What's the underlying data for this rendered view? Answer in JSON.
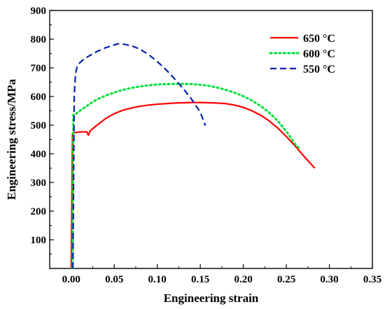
{
  "chart_data": {
    "type": "line",
    "title": "",
    "xlabel": "Engineering strain",
    "ylabel": "Engineering stress/MPa",
    "xlim": [
      -0.025,
      0.35
    ],
    "ylim": [
      0,
      900
    ],
    "xticks": [
      0.0,
      0.05,
      0.1,
      0.15,
      0.2,
      0.25,
      0.3,
      0.35
    ],
    "xtick_labels": [
      "0.00",
      "0.05",
      "0.10",
      "0.15",
      "0.20",
      "0.25",
      "0.30",
      "0.35"
    ],
    "yticks": [
      100,
      200,
      300,
      400,
      500,
      600,
      700,
      800,
      900
    ],
    "ytick_labels": [
      "100",
      "200",
      "300",
      "400",
      "500",
      "600",
      "700",
      "800",
      "900"
    ],
    "grid": false,
    "legend_position": "top-right",
    "series": [
      {
        "name": "650 °C",
        "color": "#ff0000",
        "line_style": "solid",
        "points": [
          [
            0.0,
            0
          ],
          [
            0.0015,
            470
          ],
          [
            0.004,
            474
          ],
          [
            0.01,
            476
          ],
          [
            0.018,
            477
          ],
          [
            0.02,
            465
          ],
          [
            0.022,
            480
          ],
          [
            0.03,
            500
          ],
          [
            0.04,
            523
          ],
          [
            0.05,
            540
          ],
          [
            0.06,
            552
          ],
          [
            0.07,
            560
          ],
          [
            0.08,
            566
          ],
          [
            0.09,
            570
          ],
          [
            0.1,
            573
          ],
          [
            0.11,
            575
          ],
          [
            0.12,
            577
          ],
          [
            0.13,
            578
          ],
          [
            0.14,
            579
          ],
          [
            0.15,
            579
          ],
          [
            0.16,
            578
          ],
          [
            0.17,
            577
          ],
          [
            0.18,
            575
          ],
          [
            0.19,
            570
          ],
          [
            0.2,
            562
          ],
          [
            0.21,
            550
          ],
          [
            0.22,
            535
          ],
          [
            0.23,
            515
          ],
          [
            0.24,
            490
          ],
          [
            0.25,
            460
          ],
          [
            0.26,
            428
          ],
          [
            0.27,
            393
          ],
          [
            0.283,
            350
          ]
        ]
      },
      {
        "name": "600 °C",
        "color": "#00e03a",
        "line_style": "dotted",
        "points": [
          [
            0.0015,
            0
          ],
          [
            0.0025,
            536
          ],
          [
            0.005,
            538
          ],
          [
            0.01,
            550
          ],
          [
            0.02,
            571
          ],
          [
            0.03,
            590
          ],
          [
            0.04,
            603
          ],
          [
            0.05,
            614
          ],
          [
            0.06,
            623
          ],
          [
            0.07,
            630
          ],
          [
            0.08,
            635
          ],
          [
            0.09,
            639
          ],
          [
            0.1,
            642
          ],
          [
            0.11,
            643
          ],
          [
            0.12,
            644
          ],
          [
            0.13,
            644
          ],
          [
            0.14,
            643
          ],
          [
            0.15,
            641
          ],
          [
            0.16,
            637
          ],
          [
            0.17,
            631
          ],
          [
            0.18,
            623
          ],
          [
            0.19,
            613
          ],
          [
            0.2,
            601
          ],
          [
            0.21,
            586
          ],
          [
            0.22,
            567
          ],
          [
            0.23,
            544
          ],
          [
            0.24,
            515
          ],
          [
            0.25,
            478
          ],
          [
            0.26,
            435
          ],
          [
            0.265,
            418
          ]
        ]
      },
      {
        "name": "550 °C",
        "color": "#0022b0",
        "line_style": "dashed",
        "points": [
          [
            0.002,
            0
          ],
          [
            0.0035,
            600
          ],
          [
            0.005,
            680
          ],
          [
            0.007,
            705
          ],
          [
            0.01,
            718
          ],
          [
            0.015,
            731
          ],
          [
            0.02,
            740
          ],
          [
            0.03,
            757
          ],
          [
            0.04,
            770
          ],
          [
            0.05,
            780
          ],
          [
            0.055,
            784
          ],
          [
            0.06,
            783
          ],
          [
            0.07,
            777
          ],
          [
            0.08,
            765
          ],
          [
            0.09,
            746
          ],
          [
            0.1,
            722
          ],
          [
            0.11,
            694
          ],
          [
            0.12,
            662
          ],
          [
            0.13,
            628
          ],
          [
            0.14,
            590
          ],
          [
            0.15,
            545
          ],
          [
            0.156,
            498
          ]
        ]
      }
    ]
  }
}
